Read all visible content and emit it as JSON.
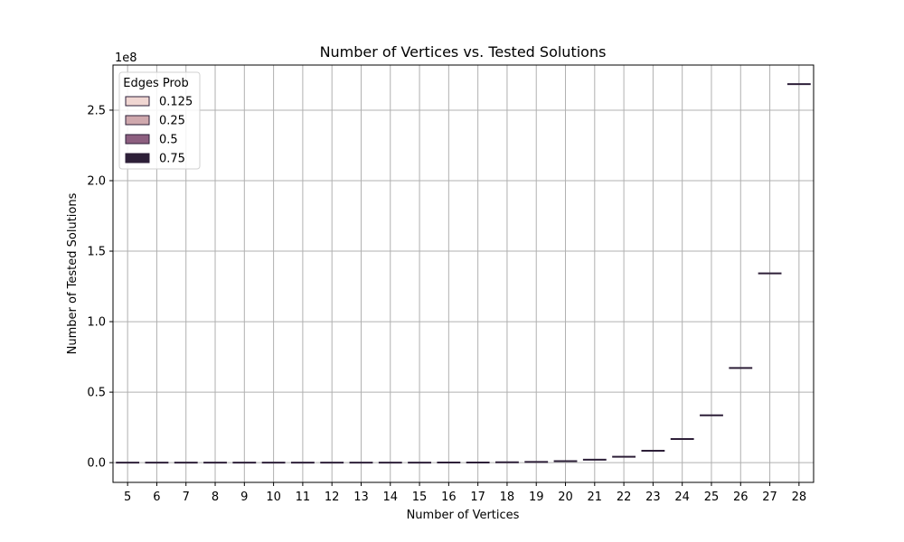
{
  "chart_data": {
    "type": "box",
    "title": "Number of Vertices vs. Tested Solutions",
    "xlabel": "Number of Vertices",
    "ylabel": "Number of Tested Solutions",
    "y_scale_label": "1e8",
    "ylim": [
      -14000000,
      282000000
    ],
    "y_ticks": [
      0,
      50000000,
      100000000,
      150000000,
      200000000,
      250000000
    ],
    "y_tick_labels": [
      "0.0",
      "0.5",
      "1.0",
      "1.5",
      "2.0",
      "2.5"
    ],
    "categories": [
      "5",
      "6",
      "7",
      "8",
      "9",
      "10",
      "11",
      "12",
      "13",
      "14",
      "15",
      "16",
      "17",
      "18",
      "19",
      "20",
      "21",
      "22",
      "23",
      "24",
      "25",
      "26",
      "27",
      "28"
    ],
    "values": [
      32,
      64,
      128,
      256,
      512,
      1024,
      2048,
      4096,
      8192,
      16384,
      32768,
      65536,
      131072,
      262144,
      524288,
      1048576,
      2097152,
      4194304,
      8388608,
      16777216,
      33554432,
      67108864,
      134217728,
      268435456
    ],
    "grid": true,
    "legend": {
      "title": "Edges Prob",
      "placement": "top-left",
      "entries": [
        {
          "label": "0.125",
          "color": "#f0d6d2"
        },
        {
          "label": "0.25",
          "color": "#cfa8ad"
        },
        {
          "label": "0.5",
          "color": "#8d5f80"
        },
        {
          "label": "0.75",
          "color": "#2d1f38"
        }
      ]
    },
    "box_color": "#2d1f38"
  }
}
